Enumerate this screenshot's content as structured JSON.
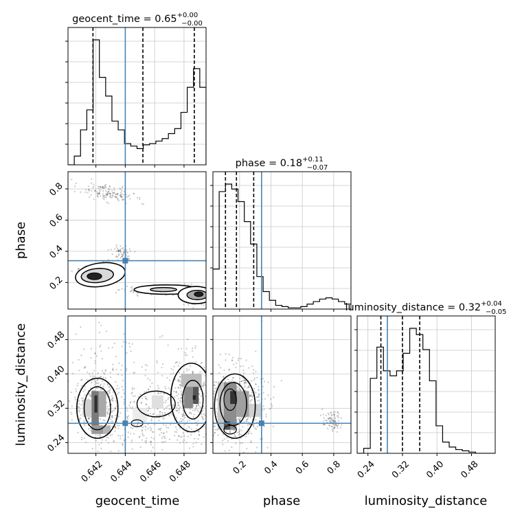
{
  "chart_data": {
    "type": "corner",
    "parameters": [
      "geocent_time",
      "phase",
      "luminosity_distance"
    ],
    "truth_color": "#4682b4",
    "truths": {
      "geocent_time": 0.644,
      "phase": 0.34,
      "luminosity_distance": 0.285
    },
    "ranges": {
      "geocent_time": [
        0.6401,
        0.6495
      ],
      "phase": [
        0.03,
        0.91
      ],
      "luminosity_distance": [
        0.215,
        0.535
      ]
    },
    "titles": [
      {
        "param": "geocent_time",
        "name": "geocent_time",
        "value": "0.65",
        "plus": "+0.00",
        "minus": "−0.00"
      },
      {
        "param": "phase",
        "name": "phase",
        "value": "0.18",
        "plus": "+0.11",
        "minus": "−0.07"
      },
      {
        "param": "luminosity_distance",
        "name": "luminosity_distance",
        "value": "0.32",
        "plus": "+0.04",
        "minus": "−0.05"
      }
    ],
    "xlabels": {
      "geocent_time": "geocent_time",
      "phase": "phase",
      "luminosity_distance": "luminosity_distance"
    },
    "ylabels": {
      "phase": "phase",
      "luminosity_distance": "luminosity_distance"
    },
    "ticks": {
      "geocent_time": [
        "0.642",
        "0.644",
        "0.646",
        "0.648"
      ],
      "phase": [
        "0.2",
        "0.4",
        "0.6",
        "0.8"
      ],
      "luminosity_distance": [
        "0.24",
        "0.32",
        "0.40",
        "0.48"
      ]
    },
    "quantiles": {
      "geocent_time": [
        0.6418,
        0.6452,
        0.6487
      ],
      "phase": [
        0.11,
        0.18,
        0.29
      ],
      "luminosity_distance": [
        0.27,
        0.32,
        0.36
      ]
    },
    "histograms": {
      "geocent_time": {
        "edges_range": [
          0.6401,
          0.6495
        ],
        "counts": [
          0,
          0.07,
          0.28,
          0.44,
          1.0,
          0.7,
          0.55,
          0.35,
          0.28,
          0.17,
          0.15,
          0.13,
          0.16,
          0.17,
          0.19,
          0.21,
          0.25,
          0.29,
          0.42,
          0.62,
          0.77,
          0.62
        ]
      },
      "phase": {
        "edges_range": [
          0.03,
          0.91
        ],
        "counts": [
          0.32,
          0.94,
          1.0,
          0.96,
          0.86,
          0.7,
          0.52,
          0.26,
          0.14,
          0.07,
          0.03,
          0.02,
          0.01,
          0.01,
          0.02,
          0.04,
          0.06,
          0.08,
          0.09,
          0.08,
          0.06,
          0.04
        ]
      },
      "luminosity_distance": {
        "edges_range": [
          0.215,
          0.535
        ],
        "counts": [
          0,
          0.04,
          0.6,
          0.85,
          0.66,
          0.62,
          0.66,
          0.8,
          1.0,
          0.95,
          0.83,
          0.58,
          0.22,
          0.09,
          0.05,
          0.03,
          0.02,
          0.01,
          0,
          0,
          0
        ]
      }
    },
    "grid": true
  }
}
